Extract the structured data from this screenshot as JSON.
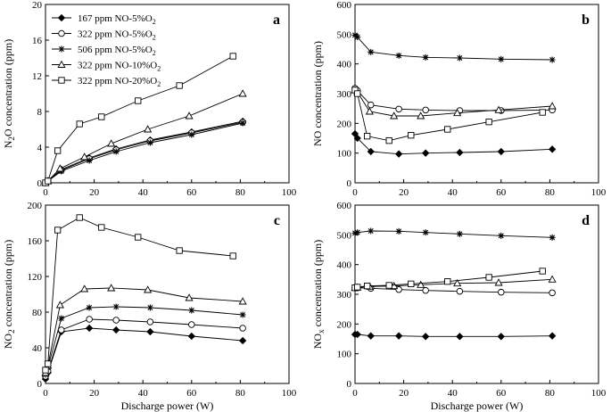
{
  "chart_data": [
    {
      "panel": "a",
      "type": "line",
      "ylabel": "N2O concentration (ppm)",
      "ylabel_parts": [
        "N",
        "2",
        "O concentration (ppm)"
      ],
      "xlabel": "",
      "xlim": [
        0,
        100
      ],
      "ylim": [
        0,
        20
      ],
      "xticks": [
        0,
        20,
        40,
        60,
        80,
        100
      ],
      "yticks": [
        0,
        4,
        8,
        12,
        16,
        20
      ],
      "series": [
        {
          "name": "167 ppm NO-5%O2",
          "marker": "diamond",
          "x": [
            0,
            1,
            6.5,
            18,
            29,
            43,
            60,
            81
          ],
          "y": [
            0,
            0.2,
            1.5,
            2.8,
            3.8,
            4.8,
            5.7,
            6.9
          ]
        },
        {
          "name": "322 ppm NO-5%O2",
          "marker": "circle",
          "x": [
            0,
            1,
            6.5,
            18,
            29,
            43,
            60,
            81
          ],
          "y": [
            0,
            0.2,
            1.4,
            2.7,
            3.7,
            4.7,
            5.6,
            6.8
          ]
        },
        {
          "name": "506 ppm NO-5%O2",
          "marker": "star",
          "x": [
            0,
            1,
            6.5,
            18,
            29,
            43,
            60,
            81
          ],
          "y": [
            0,
            0.2,
            1.3,
            2.5,
            3.5,
            4.5,
            5.4,
            6.7
          ]
        },
        {
          "name": "322 ppm NO-10%O2",
          "marker": "triangle",
          "x": [
            0,
            1,
            6,
            16,
            27,
            42,
            59,
            81
          ],
          "y": [
            0,
            0.2,
            1.6,
            2.9,
            4.4,
            6.0,
            7.5,
            10.0
          ]
        },
        {
          "name": "322 ppm NO-20%O2",
          "marker": "square",
          "x": [
            0,
            1,
            5,
            14,
            23,
            38,
            55,
            77
          ],
          "y": [
            0,
            0.2,
            3.6,
            6.6,
            7.4,
            9.2,
            10.9,
            14.2
          ]
        }
      ],
      "legend": {
        "position": "top-left",
        "entries": [
          {
            "marker": "diamond",
            "prefix": "167 ppm NO-5%O",
            "sub": "2"
          },
          {
            "marker": "circle",
            "prefix": "322 ppm NO-5%O",
            "sub": "2"
          },
          {
            "marker": "star",
            "prefix": "506 ppm NO-5%O",
            "sub": "2"
          },
          {
            "marker": "triangle",
            "prefix": "322 ppm NO-10%O",
            "sub": "2"
          },
          {
            "marker": "square",
            "prefix": "322 ppm NO-20%O",
            "sub": "2"
          }
        ]
      }
    },
    {
      "panel": "b",
      "type": "line",
      "ylabel": "NO concentration (ppm)",
      "ylabel_parts": [
        "NO concentration (ppm)",
        "",
        ""
      ],
      "xlabel": "",
      "xlim": [
        0,
        100
      ],
      "ylim": [
        0,
        600
      ],
      "xticks": [
        0,
        20,
        40,
        60,
        80,
        100
      ],
      "yticks": [
        0,
        100,
        200,
        300,
        400,
        500,
        600
      ],
      "series": [
        {
          "name": "167 ppm NO-5%O2",
          "marker": "diamond",
          "x": [
            0,
            1,
            6.5,
            18,
            29,
            43,
            60,
            81
          ],
          "y": [
            165,
            150,
            105,
            97,
            100,
            102,
            105,
            113
          ]
        },
        {
          "name": "322 ppm NO-5%O2",
          "marker": "circle",
          "x": [
            0,
            1,
            6.5,
            18,
            29,
            43,
            60,
            81
          ],
          "y": [
            318,
            310,
            262,
            248,
            245,
            243,
            243,
            245
          ]
        },
        {
          "name": "506 ppm NO-5%O2",
          "marker": "star",
          "x": [
            0,
            1,
            6.5,
            18,
            29,
            43,
            60,
            81
          ],
          "y": [
            497,
            490,
            440,
            428,
            422,
            420,
            416,
            414
          ]
        },
        {
          "name": "322 ppm NO-10%O2",
          "marker": "triangle",
          "x": [
            0,
            1,
            6,
            16,
            27,
            42,
            59,
            81
          ],
          "y": [
            312,
            305,
            240,
            225,
            225,
            235,
            245,
            258
          ]
        },
        {
          "name": "322 ppm NO-20%O2",
          "marker": "square",
          "x": [
            0,
            1,
            5,
            14,
            23,
            38,
            55,
            77
          ],
          "y": [
            312,
            300,
            157,
            142,
            160,
            180,
            205,
            237
          ]
        }
      ]
    },
    {
      "panel": "c",
      "type": "line",
      "ylabel": "NO2 concentration (ppm)",
      "ylabel_parts": [
        "NO",
        "2",
        " concentration (ppm)"
      ],
      "xlabel": "Discharge power (W)",
      "xlim": [
        0,
        100
      ],
      "ylim": [
        0,
        200
      ],
      "xticks": [
        0,
        20,
        40,
        60,
        80,
        100
      ],
      "yticks": [
        0,
        40,
        80,
        120,
        160,
        200
      ],
      "series": [
        {
          "name": "167 ppm NO-5%O2",
          "marker": "diamond",
          "x": [
            0,
            1,
            6.5,
            18,
            29,
            43,
            60,
            81
          ],
          "y": [
            5,
            12,
            58,
            62,
            60,
            58,
            53,
            48
          ]
        },
        {
          "name": "322 ppm NO-5%O2",
          "marker": "circle",
          "x": [
            0,
            1,
            6.5,
            18,
            29,
            43,
            60,
            81
          ],
          "y": [
            8,
            14,
            60,
            72,
            71,
            69,
            66,
            62
          ]
        },
        {
          "name": "506 ppm NO-5%O2",
          "marker": "star",
          "x": [
            0,
            1,
            6.5,
            18,
            29,
            43,
            60,
            81
          ],
          "y": [
            10,
            18,
            73,
            85,
            86,
            85,
            82,
            77
          ]
        },
        {
          "name": "322 ppm NO-10%O2",
          "marker": "triangle",
          "x": [
            0,
            1,
            6,
            16,
            27,
            42,
            59,
            81
          ],
          "y": [
            12,
            20,
            88,
            106,
            107,
            105,
            96,
            92
          ]
        },
        {
          "name": "322 ppm NO-20%O2",
          "marker": "square",
          "x": [
            0,
            1,
            5,
            14,
            23,
            38,
            55,
            77
          ],
          "y": [
            15,
            22,
            172,
            186,
            175,
            164,
            149,
            143
          ]
        }
      ]
    },
    {
      "panel": "d",
      "type": "line",
      "ylabel": "NOx concentration (ppm)",
      "ylabel_parts": [
        "NO",
        "x",
        " concentration (ppm)"
      ],
      "xlabel": "Discharge power (W)",
      "xlim": [
        0,
        100
      ],
      "ylim": [
        0,
        600
      ],
      "xticks": [
        0,
        20,
        40,
        60,
        80,
        100
      ],
      "yticks": [
        0,
        100,
        200,
        300,
        400,
        500,
        600
      ],
      "series": [
        {
          "name": "167 ppm NO-5%O2",
          "marker": "diamond",
          "x": [
            0,
            1,
            6.5,
            18,
            29,
            43,
            60,
            81
          ],
          "y": [
            165,
            165,
            160,
            160,
            158,
            158,
            158,
            160
          ]
        },
        {
          "name": "322 ppm NO-5%O2",
          "marker": "circle",
          "x": [
            0,
            1,
            6.5,
            18,
            29,
            43,
            60,
            81
          ],
          "y": [
            322,
            322,
            320,
            316,
            313,
            310,
            307,
            305
          ]
        },
        {
          "name": "506 ppm NO-5%O2",
          "marker": "star",
          "x": [
            0,
            1,
            6.5,
            18,
            29,
            43,
            60,
            81
          ],
          "y": [
            506,
            508,
            513,
            512,
            508,
            503,
            497,
            491
          ]
        },
        {
          "name": "322 ppm NO-10%O2",
          "marker": "triangle",
          "x": [
            0,
            1,
            6,
            16,
            27,
            42,
            59,
            81
          ],
          "y": [
            322,
            323,
            326,
            328,
            332,
            337,
            339,
            350
          ]
        },
        {
          "name": "322 ppm NO-20%O2",
          "marker": "square",
          "x": [
            0,
            1,
            5,
            14,
            23,
            38,
            55,
            77
          ],
          "y": [
            322,
            324,
            328,
            330,
            335,
            343,
            357,
            378
          ]
        }
      ]
    }
  ]
}
